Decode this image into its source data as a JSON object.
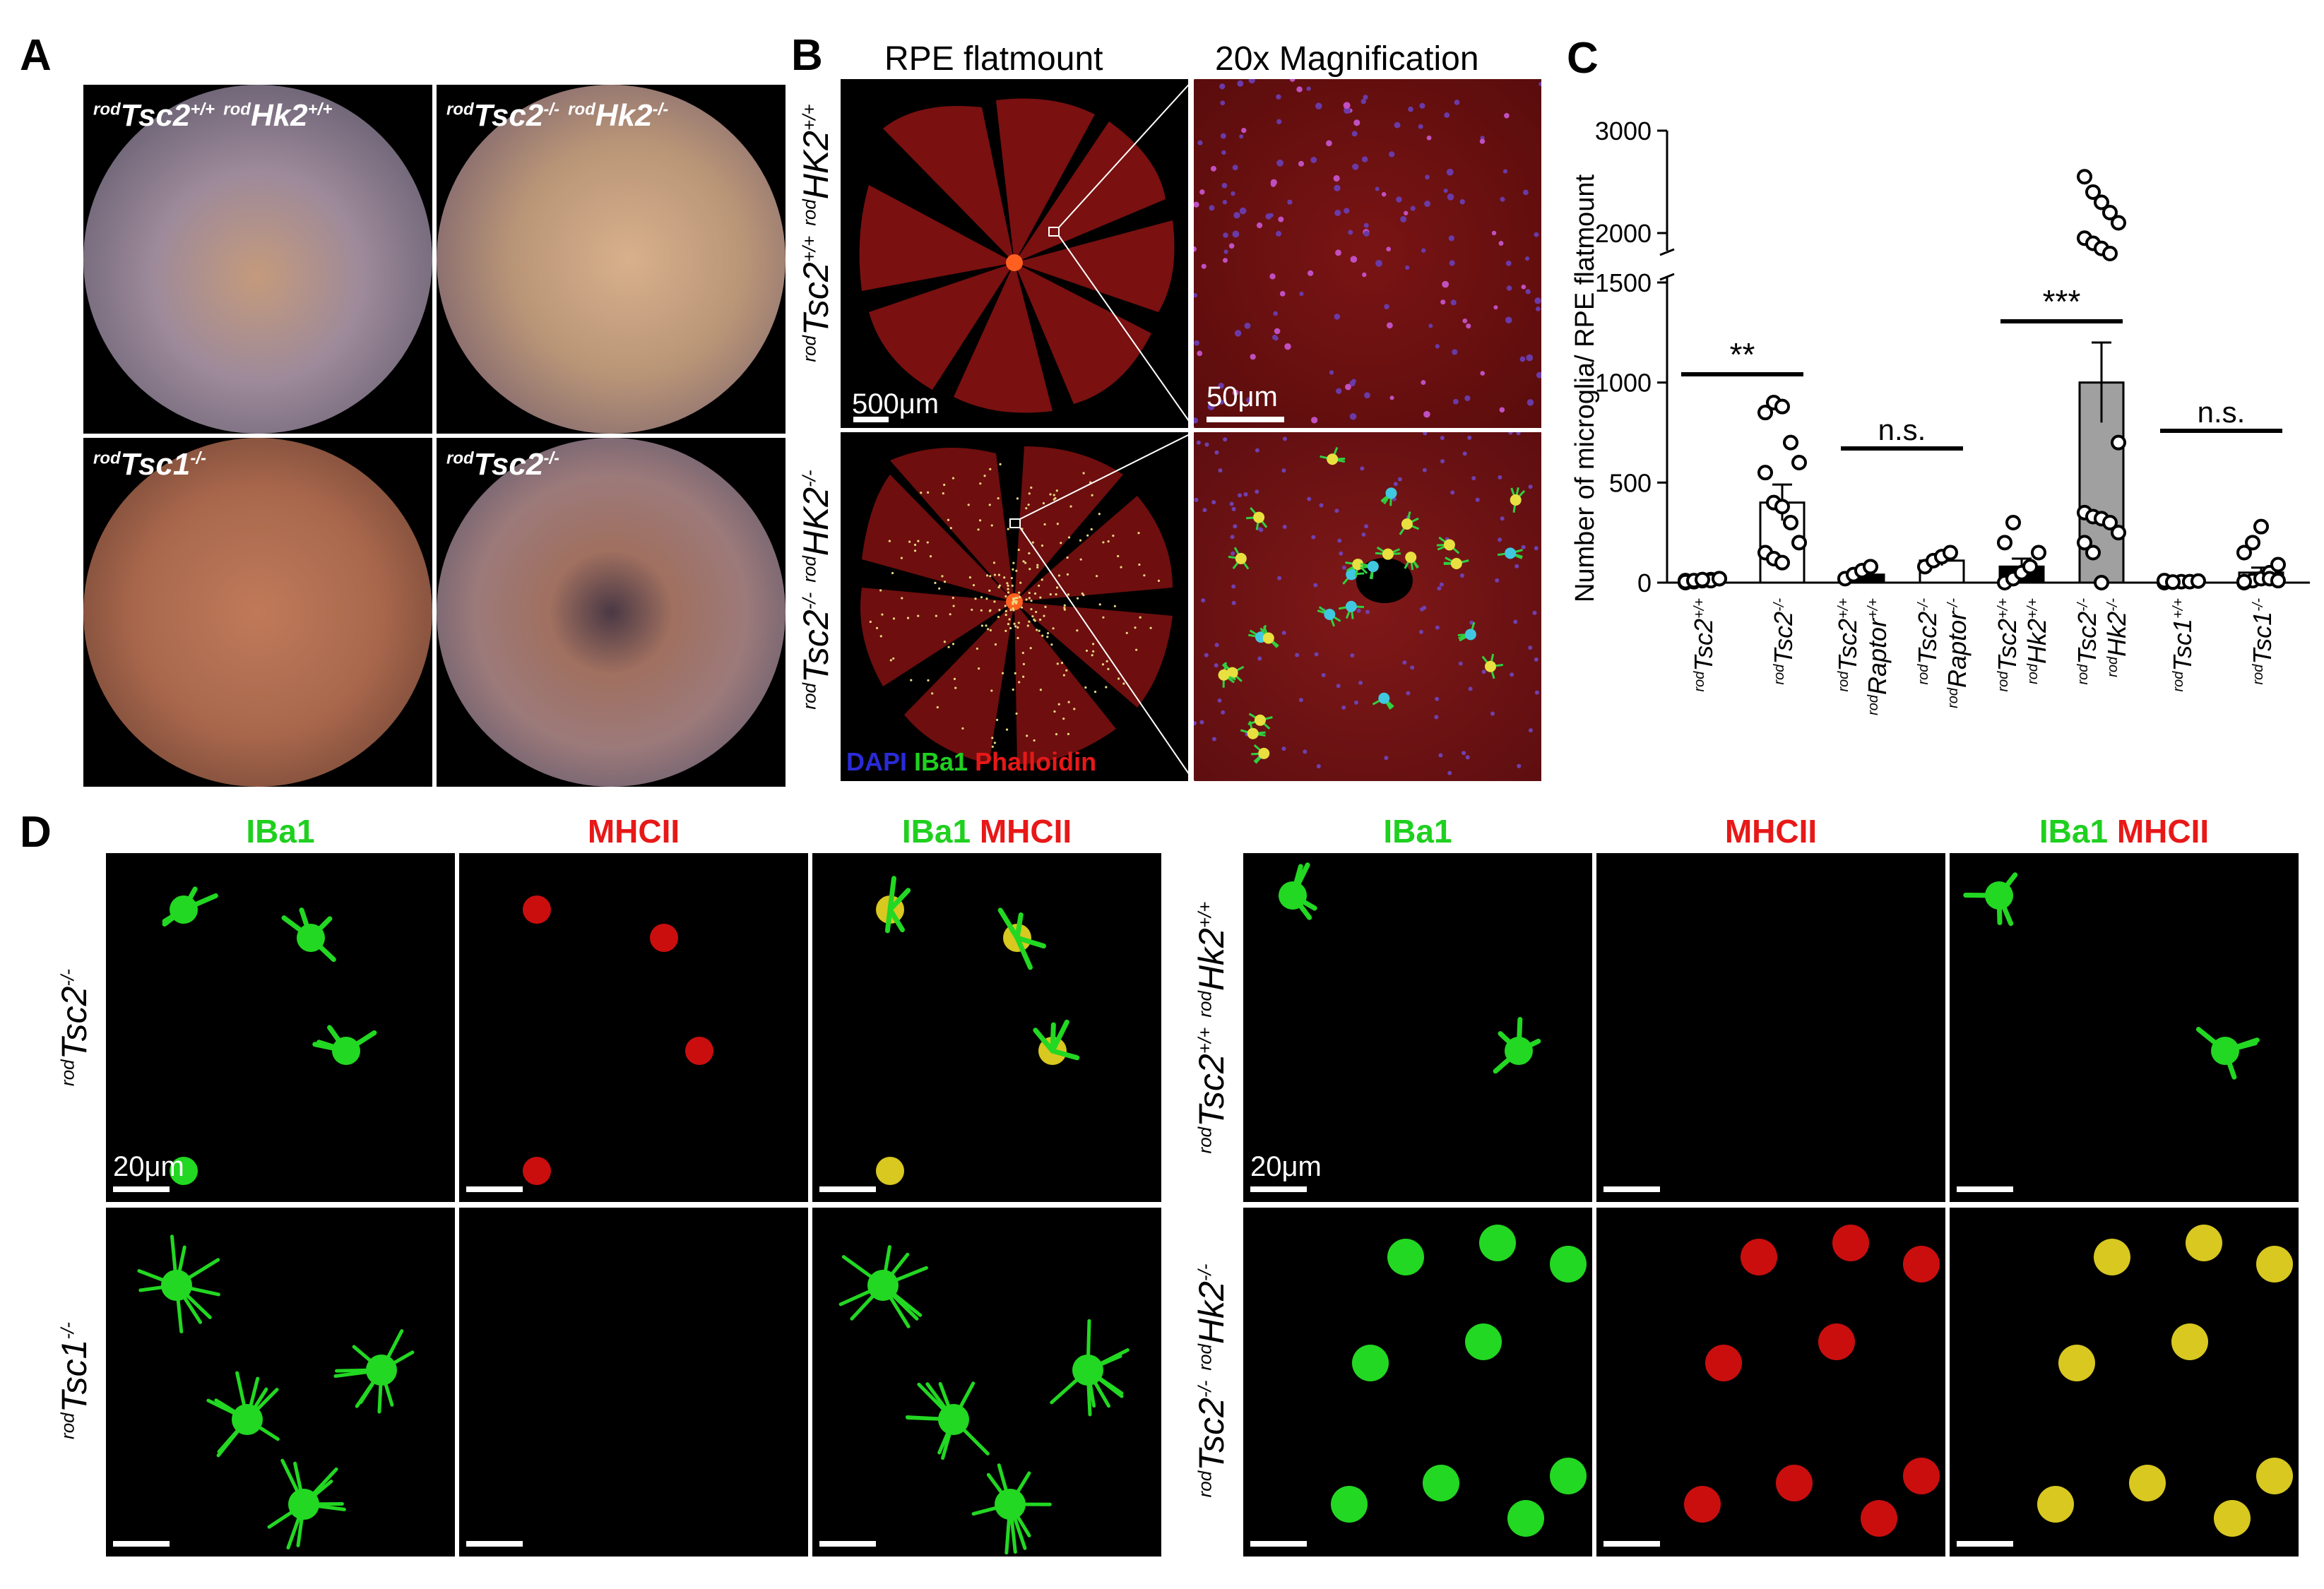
{
  "panel_labels": {
    "a": "A",
    "b": "B",
    "c": "C",
    "d": "D"
  },
  "panel_a": {
    "tl": {
      "pre1": "rod",
      "gene1": "Tsc2",
      "sup1": "+/+",
      "pre2": "rod",
      "gene2": "Hk2",
      "sup2": "+/+"
    },
    "tr": {
      "pre1": "rod",
      "gene1": "Tsc2",
      "sup1": "-/-",
      "pre2": "rod",
      "gene2": "Hk2",
      "sup2": "-/-"
    },
    "bl": {
      "pre1": "rod",
      "gene1": "Tsc1",
      "sup1": "-/-"
    },
    "br": {
      "pre1": "rod",
      "gene1": "Tsc2",
      "sup1": "-/-"
    }
  },
  "panel_b": {
    "col1_title": "RPE flatmount",
    "col2_title": "20x Magnification",
    "row1_label": {
      "pre1": "rod",
      "gene1": "Tsc2",
      "sup1": "+/+",
      "pre2": "rod",
      "gene2": "HK2",
      "sup2": "+/+"
    },
    "row2_label": {
      "pre1": "rod",
      "gene1": "Tsc2",
      "sup1": "-/-",
      "pre2": "rod",
      "gene2": "HK2",
      "sup2": "-/-"
    },
    "scale_flatmount": "500μm",
    "scale_zoom": "50μm",
    "legend": {
      "dapi": "DAPI",
      "iba1": "IBa1",
      "phalloidin": "Phalloidin"
    }
  },
  "chart_data": {
    "type": "bar",
    "ylabel": "Number of microglia/ RPE flatmount",
    "y_axis_break": [
      1500,
      2000
    ],
    "yticks_lower": [
      0,
      500,
      1000,
      1500
    ],
    "yticks_upper": [
      2000,
      3000
    ],
    "categories": [
      {
        "pre1": "rod",
        "g1": "Tsc2",
        "s1": "+/+",
        "pre2": "",
        "g2": "",
        "s2": ""
      },
      {
        "pre1": "rod",
        "g1": "Tsc2",
        "s1": "-/-",
        "pre2": "",
        "g2": "",
        "s2": ""
      },
      {
        "pre1": "rod",
        "g1": "Tsc2",
        "s1": "+/+",
        "pre2": "rod",
        "g2": "Raptor",
        "s2": "+/+"
      },
      {
        "pre1": "rod",
        "g1": "Tsc2",
        "s1": "-/-",
        "pre2": "rod",
        "g2": "Raptor",
        "s2": "-/-"
      },
      {
        "pre1": "rod",
        "g1": "Tsc2",
        "s1": "+/+",
        "pre2": "rod",
        "g2": "Hk2",
        "s2": "+/+"
      },
      {
        "pre1": "rod",
        "g1": "Tsc2",
        "s1": "-/-",
        "pre2": "rod",
        "g2": "Hk2",
        "s2": "-/-"
      },
      {
        "pre1": "rod",
        "g1": "Tsc1",
        "s1": "+/+",
        "pre2": "",
        "g2": "",
        "s2": ""
      },
      {
        "pre1": "rod",
        "g1": "Tsc1",
        "s1": "-/-",
        "pre2": "",
        "g2": "",
        "s2": ""
      }
    ],
    "means": [
      10,
      400,
      40,
      110,
      80,
      1000,
      5,
      50
    ],
    "sem": [
      5,
      90,
      10,
      25,
      40,
      200,
      2,
      25
    ],
    "bar_colors": [
      "#000000",
      "#ffffff",
      "#000000",
      "#ffffff",
      "#000000",
      "#a0a0a0",
      "#000000",
      "#ffffff"
    ],
    "points": [
      [
        0,
        5,
        10,
        15,
        20,
        10,
        5,
        15,
        10,
        20,
        5,
        10,
        15
      ],
      [
        850,
        900,
        880,
        700,
        600,
        550,
        400,
        380,
        300,
        200,
        150,
        120,
        100
      ],
      [
        20,
        40,
        60,
        80
      ],
      [
        80,
        110,
        130,
        150
      ],
      [
        0,
        20,
        50,
        80,
        150,
        200,
        300
      ],
      [
        2550,
        2400,
        2300,
        2200,
        2100,
        1950,
        1900,
        1850,
        1800,
        700,
        350,
        330,
        320,
        300,
        250,
        200,
        150,
        0
      ],
      [
        0,
        2,
        5,
        5,
        8,
        10,
        3
      ],
      [
        0,
        10,
        20,
        50,
        90,
        150,
        200,
        280,
        20,
        10,
        5
      ]
    ],
    "significance": [
      {
        "from": 0,
        "to": 1,
        "label": "**"
      },
      {
        "from": 2,
        "to": 3,
        "label": "n.s."
      },
      {
        "from": 4,
        "to": 5,
        "label": "***"
      },
      {
        "from": 6,
        "to": 7,
        "label": "n.s."
      }
    ]
  },
  "panel_d": {
    "channels": {
      "iba1": "IBa1",
      "mhcii": "MHCII"
    },
    "left_row1": {
      "pre1": "rod",
      "gene1": "Tsc2",
      "sup1": "-/-"
    },
    "left_row2": {
      "pre1": "rod",
      "gene1": "Tsc1",
      "sup1": "-/-"
    },
    "right_row1": {
      "pre1": "rod",
      "gene1": "Tsc2",
      "sup1": "+/+",
      "pre2": "rod",
      "gene2": "Hk2",
      "sup2": "+/+"
    },
    "right_row2": {
      "pre1": "rod",
      "gene1": "Tsc2",
      "sup1": "-/-",
      "pre2": "rod",
      "gene2": "Hk2",
      "sup2": "-/-"
    },
    "scale": "20μm"
  },
  "colors": {
    "iba1": "#1fd01f",
    "mhcii": "#e81818",
    "dapi": "#2a2ad8"
  }
}
